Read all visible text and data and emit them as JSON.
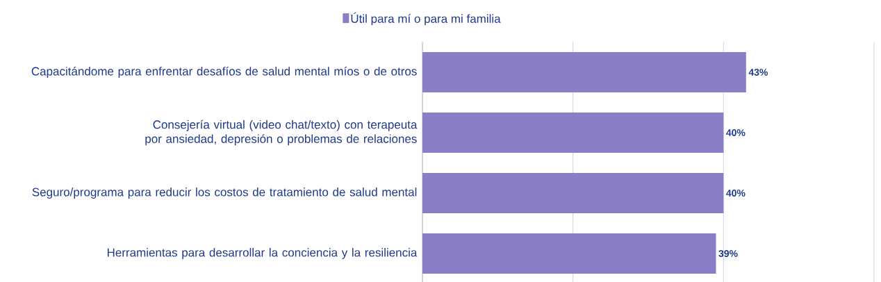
{
  "chart_data": {
    "type": "bar",
    "orientation": "horizontal",
    "categories": [
      "Capacitándome para enfrentar desafíos de salud mental míos o de otros",
      "Consejería virtual (video chat/texto) con terapeuta por ansiedad, depresión o problemas de relaciones",
      "Seguro/programa para reducir los costos de tratamiento de salud mental",
      "Herramientas para desarrollar la conciencia y la resiliencia"
    ],
    "series": [
      {
        "name": "Útil para mí o para mi familia",
        "color": "#8a7fc6",
        "values": [
          43,
          40,
          40,
          39
        ],
        "value_labels": [
          "43%",
          "40%",
          "40%",
          "39%"
        ]
      }
    ],
    "xlim": [
      0,
      60
    ],
    "xticks": [
      {
        "value": 0,
        "label": null
      },
      {
        "value": 20,
        "label": null
      },
      {
        "value": 40,
        "label": null
      },
      {
        "value": 60,
        "label": null
      }
    ],
    "tick_labels": "y",
    "grid": "x",
    "legend": "top"
  }
}
